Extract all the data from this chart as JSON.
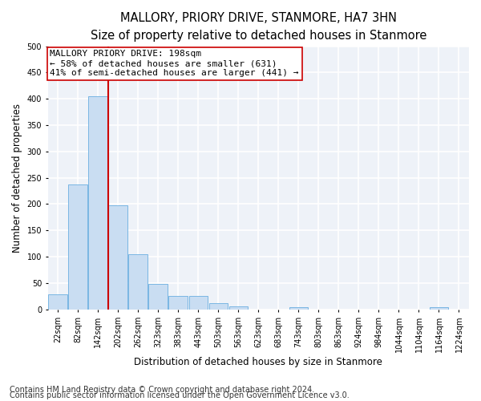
{
  "title": "MALLORY, PRIORY DRIVE, STANMORE, HA7 3HN",
  "subtitle": "Size of property relative to detached houses in Stanmore",
  "xlabel": "Distribution of detached houses by size in Stanmore",
  "ylabel": "Number of detached properties",
  "bin_labels": [
    "22sqm",
    "82sqm",
    "142sqm",
    "202sqm",
    "262sqm",
    "323sqm",
    "383sqm",
    "443sqm",
    "503sqm",
    "563sqm",
    "623sqm",
    "683sqm",
    "743sqm",
    "803sqm",
    "863sqm",
    "924sqm",
    "984sqm",
    "1044sqm",
    "1104sqm",
    "1164sqm",
    "1224sqm"
  ],
  "bar_values": [
    28,
    238,
    405,
    198,
    105,
    48,
    25,
    25,
    12,
    6,
    0,
    0,
    5,
    0,
    0,
    0,
    0,
    0,
    0,
    4,
    0
  ],
  "bar_color": "#c9ddf2",
  "bar_edge_color": "#6aaee0",
  "vline_color": "#cc0000",
  "annotation_title": "MALLORY PRIORY DRIVE: 198sqm",
  "annotation_line2": "← 58% of detached houses are smaller (631)",
  "annotation_line3": "41% of semi-detached houses are larger (441) →",
  "annotation_box_color": "#ffffff",
  "annotation_box_edge": "#cc0000",
  "ylim": [
    0,
    500
  ],
  "yticks": [
    0,
    50,
    100,
    150,
    200,
    250,
    300,
    350,
    400,
    450,
    500
  ],
  "footnote1": "Contains HM Land Registry data © Crown copyright and database right 2024.",
  "footnote2": "Contains public sector information licensed under the Open Government Licence v3.0.",
  "background_color": "#eef2f8",
  "grid_color": "#ffffff",
  "title_fontsize": 10.5,
  "subtitle_fontsize": 9.5,
  "axis_label_fontsize": 8.5,
  "tick_fontsize": 7,
  "annotation_fontsize": 8,
  "footnote_fontsize": 7
}
